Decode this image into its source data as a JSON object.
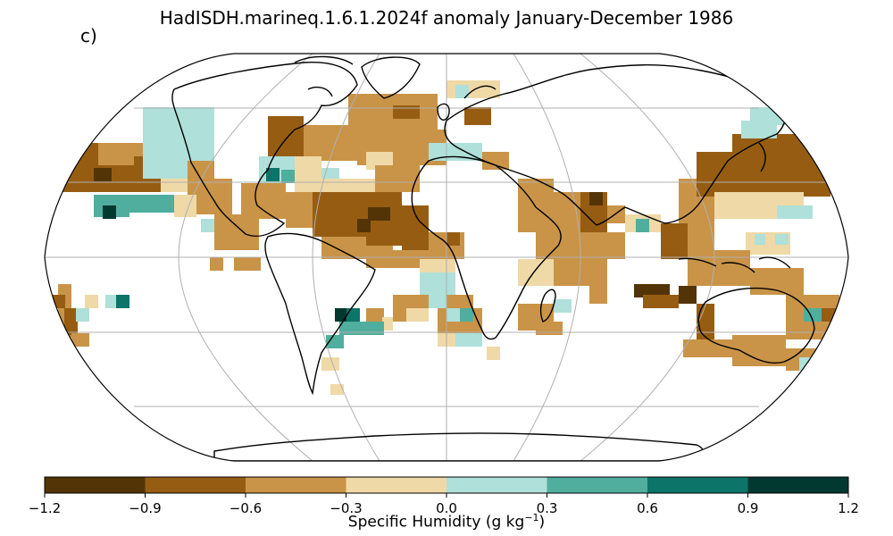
{
  "title": "HadISDH.marineq.1.6.1.2024f anomaly January-December 1986",
  "panel_label": "c)",
  "map": {
    "projection": "Robinson",
    "graticule": "30° lat/lon",
    "units_of_field": "g kg-1"
  },
  "colorbar": {
    "label_main": "Specific Humidity (g kg",
    "label_sup": "−1",
    "label_close": ")",
    "ticks": [
      "−1.2",
      "−0.9",
      "−0.6",
      "−0.3",
      "0.0",
      "0.3",
      "0.6",
      "0.9",
      "1.2"
    ],
    "colors": [
      "#533407",
      "#965d12",
      "#c99447",
      "#efd9a7",
      "#afe0d9",
      "#50ae9f",
      "#0d7469",
      "#01382f"
    ]
  }
}
